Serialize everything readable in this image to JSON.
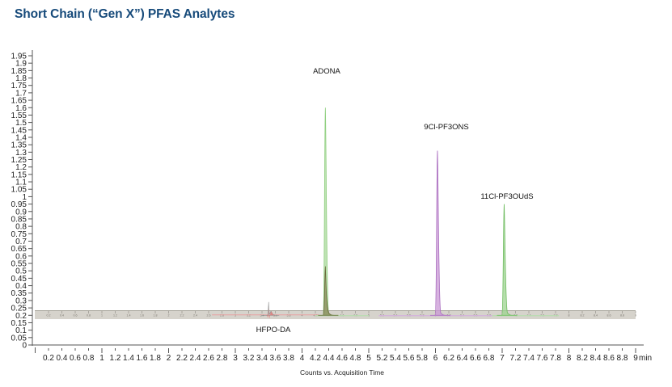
{
  "title": "Short Chain (“Gen X”) PFAS Analytes",
  "chart_data": {
    "type": "line",
    "title": "Short Chain (“Gen X”) PFAS Analytes",
    "xlabel": "Counts vs. Acquisition Time",
    "x_unit": "min",
    "ylabel": "",
    "xlim": [
      0,
      9
    ],
    "ylim": [
      0,
      1.95
    ],
    "grid": false,
    "x_ticks": [
      "0.2",
      "0.4",
      "0.6",
      "0.8",
      "1",
      "1.2",
      "1.4",
      "1.6",
      "1.8",
      "2",
      "2.2",
      "2.4",
      "2.6",
      "2.8",
      "3",
      "3.2",
      "3.4",
      "3.6",
      "3.8",
      "4",
      "4.2",
      "4.4",
      "4.6",
      "4.8",
      "5",
      "5.2",
      "5.4",
      "5.6",
      "5.8",
      "6",
      "6.2",
      "6.4",
      "6.6",
      "6.8",
      "7",
      "7.2",
      "7.4",
      "7.6",
      "7.8",
      "8",
      "8.2",
      "8.4",
      "8.6",
      "8.8",
      "9"
    ],
    "y_ticks": [
      "0",
      "0.05",
      "0.1",
      "0.15",
      "0.2",
      "0.25",
      "0.3",
      "0.35",
      "0.4",
      "0.45",
      "0.5",
      "0.55",
      "0.6",
      "0.65",
      "0.7",
      "0.75",
      "0.8",
      "0.85",
      "0.9",
      "0.95",
      "1",
      "1.05",
      "1.1",
      "1.15",
      "1.2",
      "1.25",
      "1.3",
      "1.35",
      "1.4",
      "1.45",
      "1.5",
      "1.55",
      "1.6",
      "1.65",
      "1.7",
      "1.75",
      "1.8",
      "1.85",
      "1.9",
      "1.95"
    ],
    "baseline": 0.2,
    "series": [
      {
        "name": "HFPO-DA",
        "color": "#d9534f",
        "retention_time": 3.5,
        "peak_height": 0.29,
        "label_position": "below"
      },
      {
        "name": "ADONA",
        "color": "#8fcf7f",
        "retention_time": 4.35,
        "peak_height": 1.6,
        "label_position": "above"
      },
      {
        "name": "ADONA (secondary trace)",
        "color": "#7a7a4a",
        "retention_time": 4.35,
        "peak_height": 0.53
      },
      {
        "name": "9Cl-PF3ONS",
        "color": "#b57ac8",
        "retention_time": 6.03,
        "peak_height": 1.31,
        "label_position": "above"
      },
      {
        "name": "11Cl-PF3OUdS",
        "color": "#7cc46c",
        "retention_time": 7.03,
        "peak_height": 0.95,
        "label_position": "above"
      }
    ],
    "annotations": [
      "ADONA",
      "9Cl-PF3ONS",
      "11Cl-PF3OUdS",
      "HFPO-DA"
    ],
    "inset_axis_label": "Counts vs. Acquisition Time (min)"
  }
}
